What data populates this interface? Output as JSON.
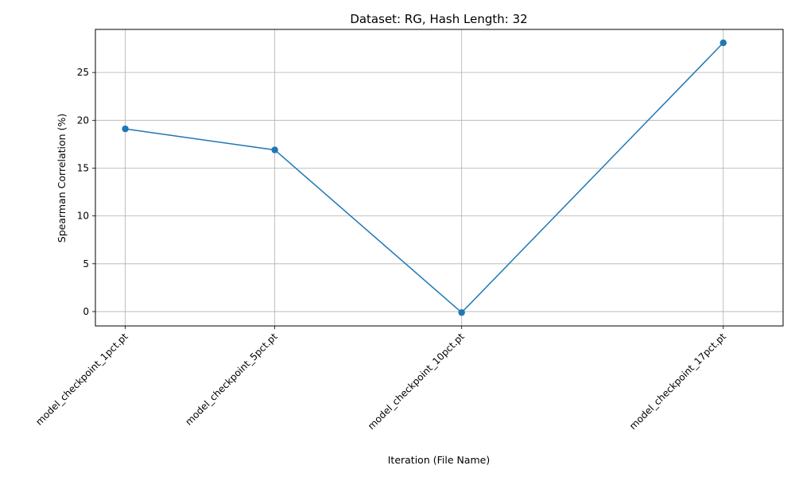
{
  "chart_data": {
    "type": "line",
    "title": "Dataset: RG, Hash Length: 32",
    "xlabel": "Iteration (File Name)",
    "ylabel": "Spearman Correlation (%)",
    "x": [
      1,
      5,
      10,
      17
    ],
    "categories": [
      "model_checkpoint_1pct.pt",
      "model_checkpoint_5pct.pt",
      "model_checkpoint_10pct.pt",
      "model_checkpoint_17pct.pt"
    ],
    "series": [
      {
        "values": [
          19.1,
          16.9,
          -0.1,
          28.1
        ]
      }
    ],
    "xlim": [
      0.2,
      18.6
    ],
    "ylim": [
      -1.5,
      29.5
    ],
    "yticks": [
      0,
      5,
      10,
      15,
      20,
      25
    ],
    "grid": true,
    "markers": true,
    "color": "#1f77b4"
  }
}
